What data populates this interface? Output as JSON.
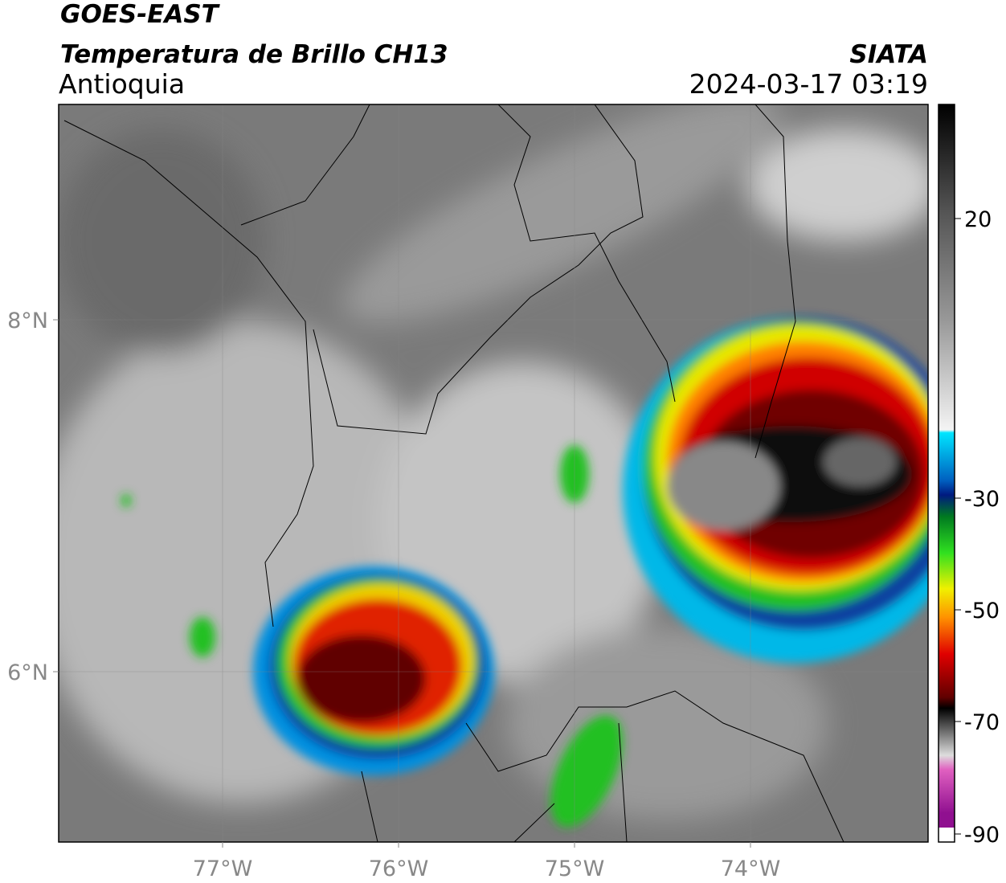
{
  "header": {
    "satellite": "GOES-EAST",
    "product": "Temperatura de Brillo CH13",
    "region": "Antioquia",
    "agency": "SIATA",
    "datetime": "2024-03-17 03:19"
  },
  "map": {
    "lon_labels": [
      "77°W",
      "76°W",
      "75°W",
      "74°W"
    ],
    "lat_labels": [
      "8°N",
      "6°N"
    ]
  },
  "colorbar": {
    "tick_labels": [
      "20",
      "-30",
      "-50",
      "-70",
      "-90"
    ]
  }
}
